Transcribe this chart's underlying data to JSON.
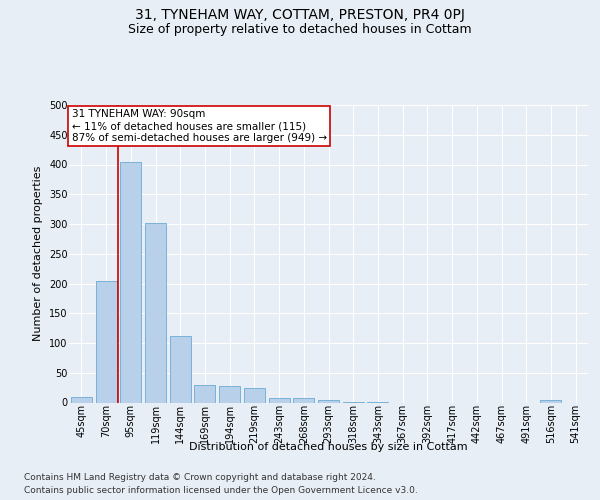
{
  "title": "31, TYNEHAM WAY, COTTAM, PRESTON, PR4 0PJ",
  "subtitle": "Size of property relative to detached houses in Cottam",
  "xlabel": "Distribution of detached houses by size in Cottam",
  "ylabel": "Number of detached properties",
  "categories": [
    "45sqm",
    "70sqm",
    "95sqm",
    "119sqm",
    "144sqm",
    "169sqm",
    "194sqm",
    "219sqm",
    "243sqm",
    "268sqm",
    "293sqm",
    "318sqm",
    "343sqm",
    "367sqm",
    "392sqm",
    "417sqm",
    "442sqm",
    "467sqm",
    "491sqm",
    "516sqm",
    "541sqm"
  ],
  "values": [
    10,
    205,
    405,
    302,
    112,
    30,
    28,
    25,
    8,
    7,
    5,
    1,
    1,
    0,
    0,
    0,
    0,
    0,
    0,
    5,
    0
  ],
  "bar_color": "#b8d0ea",
  "bar_edge_color": "#6aaad4",
  "annotation_text": "31 TYNEHAM WAY: 90sqm\n← 11% of detached houses are smaller (115)\n87% of semi-detached houses are larger (949) →",
  "annotation_box_color": "#ffffff",
  "annotation_box_edge_color": "#cc0000",
  "vline_color": "#cc0000",
  "ylim": [
    0,
    500
  ],
  "yticks": [
    0,
    50,
    100,
    150,
    200,
    250,
    300,
    350,
    400,
    450,
    500
  ],
  "footer_line1": "Contains HM Land Registry data © Crown copyright and database right 2024.",
  "footer_line2": "Contains public sector information licensed under the Open Government Licence v3.0.",
  "bg_color": "#e8eef5",
  "plot_bg_color": "#e8eef5",
  "grid_color": "#ffffff",
  "title_fontsize": 10,
  "subtitle_fontsize": 9,
  "axis_label_fontsize": 8,
  "tick_fontsize": 7,
  "annotation_fontsize": 7.5,
  "footer_fontsize": 6.5
}
